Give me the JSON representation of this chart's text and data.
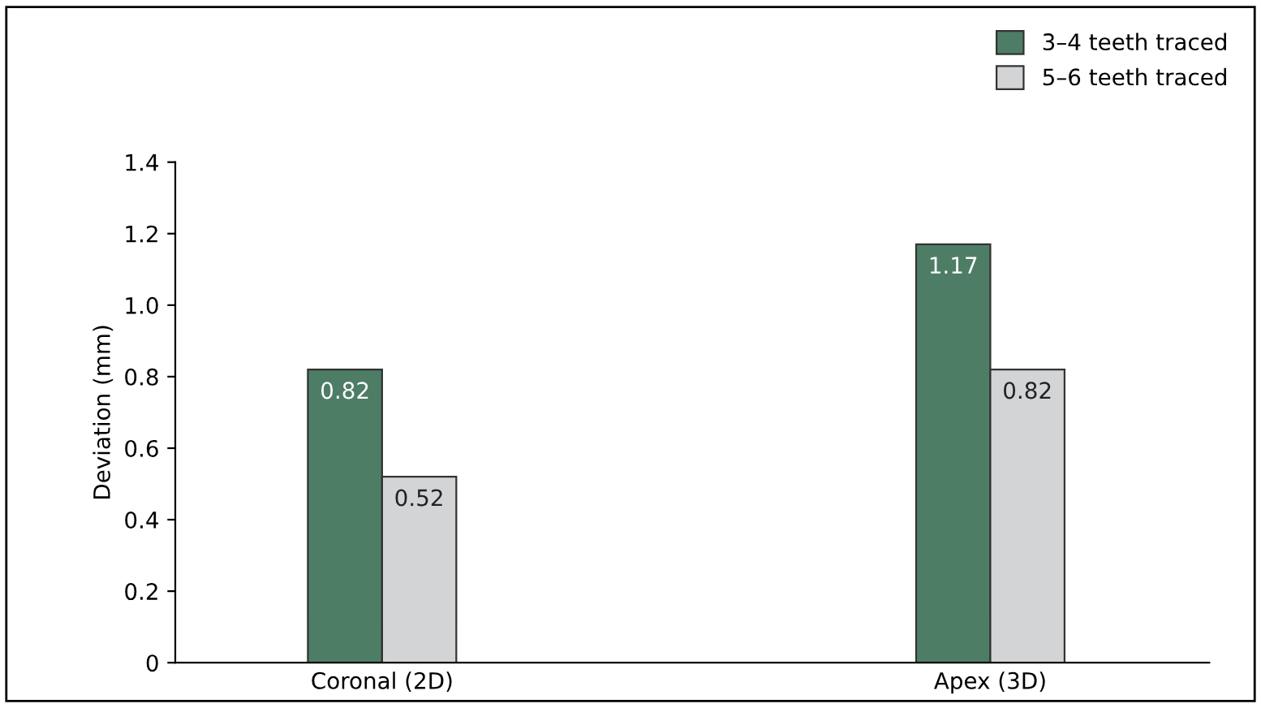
{
  "chart_data": {
    "type": "bar",
    "ylabel": "Deviation (mm)",
    "categories": [
      "Coronal (2D)",
      "Apex (3D)"
    ],
    "series": [
      {
        "name": "3–4 teeth traced",
        "color": "#4e7d66",
        "values": [
          0.82,
          1.17
        ]
      },
      {
        "name": "5–6 teeth traced",
        "color": "#d3d4d6",
        "values": [
          0.52,
          0.82
        ]
      }
    ],
    "ylim": [
      0,
      1.4
    ],
    "yticks": [
      0,
      0.2,
      0.4,
      0.6,
      0.8,
      {
        "value": 1,
        "label": "1.0"
      },
      1.2,
      1.4
    ],
    "data_labels": true,
    "legend": "top right",
    "grid": false
  }
}
